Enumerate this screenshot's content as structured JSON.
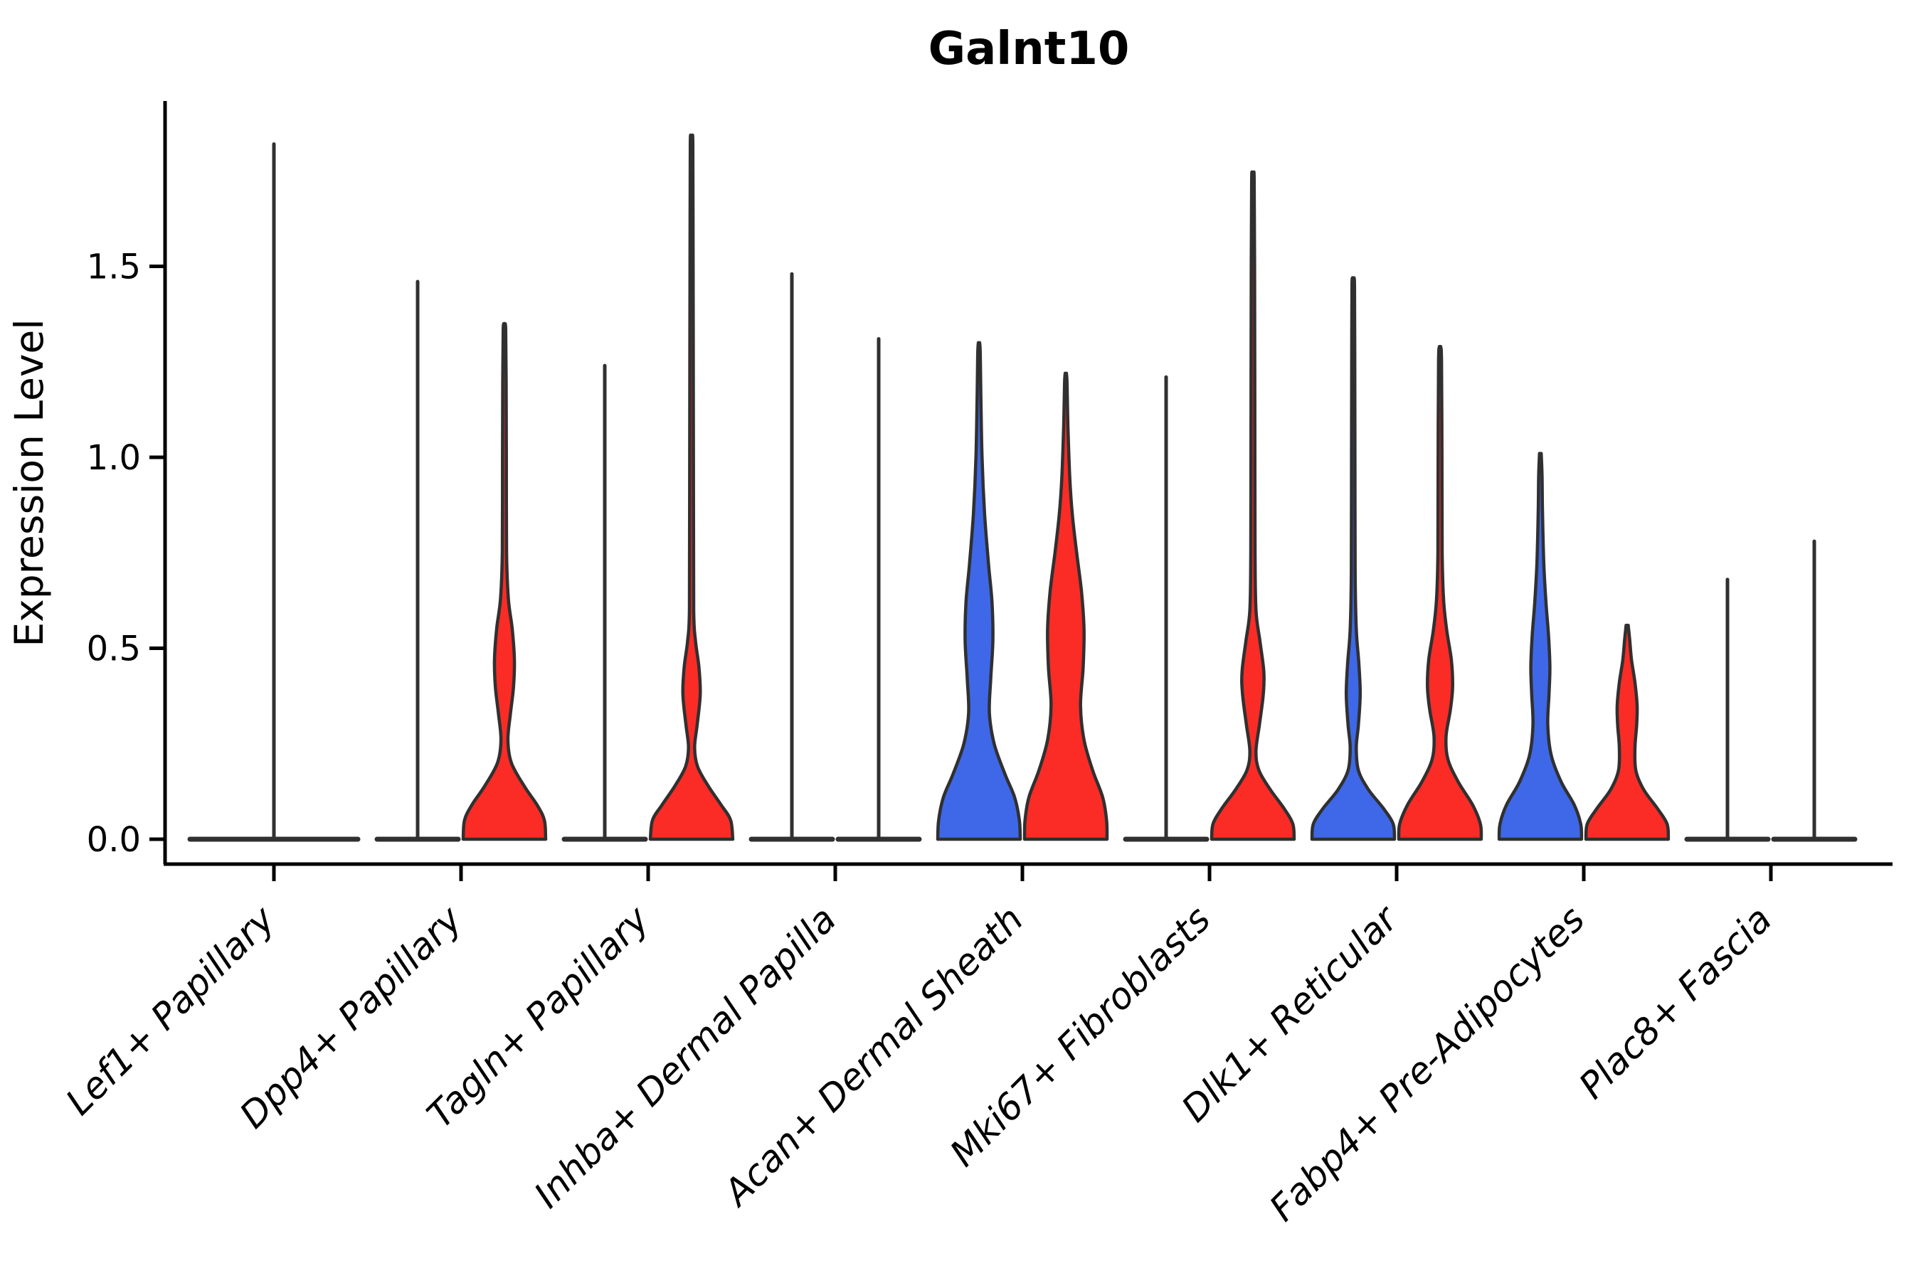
{
  "chart_data": {
    "type": "violin",
    "title": "Galnt10",
    "ylabel": "Expression Level",
    "xlabel": "",
    "ytick_labels": [
      "0.0",
      "0.5",
      "1.0",
      "1.5"
    ],
    "ytick_values": [
      0.0,
      0.5,
      1.0,
      1.5
    ],
    "ylim": [
      0.0,
      1.93
    ],
    "grid": false,
    "legend": "none",
    "split_violin_sides": [
      "left-blue",
      "right-red"
    ],
    "colors": {
      "blue_fill": "#3E68E7",
      "red_fill": "#FB2B26",
      "violin_outline": "#303030",
      "axis": "#000000",
      "background": "#ffffff"
    },
    "categories": [
      "Lef1+ Papillary",
      "Dpp4+ Papillary",
      "Tagln+ Papillary",
      "Inhba+ Dermal Papilla",
      "Acan+ Dermal Sheath",
      "Mki67+ Fibroblasts",
      "Dlk1+ Reticular",
      "Fabp4+ Pre-Adipocytes",
      "Plac8+ Fascia"
    ],
    "groups": [
      {
        "category": "Lef1+ Papillary",
        "violins": [
          {
            "split": "single",
            "color": "none",
            "shape": "collapsed",
            "max": 1.82
          }
        ]
      },
      {
        "category": "Dpp4+ Papillary",
        "violins": [
          {
            "split": "left",
            "color": "blue",
            "shape": "collapsed",
            "max": 1.46
          },
          {
            "split": "right",
            "color": "red",
            "shape": "profile",
            "max": 1.35,
            "profile": [
              [
                0,
                0.95
              ],
              [
                0.05,
                0.92
              ],
              [
                0.09,
                0.75
              ],
              [
                0.14,
                0.45
              ],
              [
                0.2,
                0.16
              ],
              [
                0.26,
                0.08
              ],
              [
                0.33,
                0.14
              ],
              [
                0.4,
                0.21
              ],
              [
                0.47,
                0.23
              ],
              [
                0.55,
                0.18
              ],
              [
                0.63,
                0.09
              ],
              [
                0.75,
                0.05
              ],
              [
                1.0,
                0.045
              ],
              [
                1.2,
                0.04
              ],
              [
                1.33,
                0.03
              ],
              [
                1.35,
                0.015
              ]
            ]
          }
        ]
      },
      {
        "category": "Tagln+ Papillary",
        "violins": [
          {
            "split": "left",
            "color": "blue",
            "shape": "collapsed",
            "max": 1.24
          },
          {
            "split": "right",
            "color": "red",
            "shape": "profile",
            "max": 1.84,
            "profile": [
              [
                0,
                0.95
              ],
              [
                0.05,
                0.9
              ],
              [
                0.09,
                0.68
              ],
              [
                0.14,
                0.38
              ],
              [
                0.19,
                0.14
              ],
              [
                0.24,
                0.07
              ],
              [
                0.3,
                0.13
              ],
              [
                0.38,
                0.2
              ],
              [
                0.45,
                0.17
              ],
              [
                0.52,
                0.09
              ],
              [
                0.6,
                0.05
              ],
              [
                0.9,
                0.045
              ],
              [
                1.3,
                0.04
              ],
              [
                1.6,
                0.035
              ],
              [
                1.82,
                0.03
              ],
              [
                1.84,
                0.015
              ]
            ]
          }
        ]
      },
      {
        "category": "Inhba+ Dermal Papilla",
        "violins": [
          {
            "split": "left",
            "color": "blue",
            "shape": "collapsed",
            "max": 1.48
          },
          {
            "split": "right",
            "color": "red",
            "shape": "collapsed",
            "max": 1.31
          }
        ]
      },
      {
        "category": "Acan+ Dermal Sheath",
        "violins": [
          {
            "split": "left",
            "color": "blue",
            "shape": "profile",
            "max": 1.3,
            "profile": [
              [
                0,
                0.95
              ],
              [
                0.05,
                0.93
              ],
              [
                0.11,
                0.82
              ],
              [
                0.17,
                0.6
              ],
              [
                0.25,
                0.35
              ],
              [
                0.33,
                0.24
              ],
              [
                0.42,
                0.27
              ],
              [
                0.52,
                0.32
              ],
              [
                0.62,
                0.3
              ],
              [
                0.72,
                0.22
              ],
              [
                0.85,
                0.13
              ],
              [
                1.0,
                0.07
              ],
              [
                1.15,
                0.045
              ],
              [
                1.27,
                0.03
              ],
              [
                1.3,
                0.015
              ]
            ]
          },
          {
            "split": "right",
            "color": "red",
            "shape": "profile",
            "max": 1.22,
            "profile": [
              [
                0,
                0.95
              ],
              [
                0.05,
                0.94
              ],
              [
                0.11,
                0.85
              ],
              [
                0.18,
                0.62
              ],
              [
                0.26,
                0.42
              ],
              [
                0.35,
                0.34
              ],
              [
                0.45,
                0.4
              ],
              [
                0.55,
                0.42
              ],
              [
                0.65,
                0.36
              ],
              [
                0.75,
                0.25
              ],
              [
                0.85,
                0.15
              ],
              [
                0.95,
                0.09
              ],
              [
                1.08,
                0.05
              ],
              [
                1.19,
                0.03
              ],
              [
                1.22,
                0.015
              ]
            ]
          }
        ]
      },
      {
        "category": "Mki67+ Fibroblasts",
        "violins": [
          {
            "split": "left",
            "color": "blue",
            "shape": "collapsed",
            "max": 1.21
          },
          {
            "split": "right",
            "color": "red",
            "shape": "profile",
            "max": 1.74,
            "profile": [
              [
                0,
                0.95
              ],
              [
                0.04,
                0.92
              ],
              [
                0.08,
                0.72
              ],
              [
                0.13,
                0.4
              ],
              [
                0.18,
                0.14
              ],
              [
                0.23,
                0.07
              ],
              [
                0.3,
                0.15
              ],
              [
                0.38,
                0.24
              ],
              [
                0.44,
                0.25
              ],
              [
                0.52,
                0.16
              ],
              [
                0.6,
                0.07
              ],
              [
                0.75,
                0.05
              ],
              [
                1.1,
                0.045
              ],
              [
                1.45,
                0.04
              ],
              [
                1.72,
                0.03
              ],
              [
                1.74,
                0.015
              ]
            ]
          }
        ]
      },
      {
        "category": "Dlk1+ Reticular",
        "violins": [
          {
            "split": "left",
            "color": "blue",
            "shape": "profile",
            "max": 1.47,
            "profile": [
              [
                0,
                0.95
              ],
              [
                0.04,
                0.92
              ],
              [
                0.08,
                0.7
              ],
              [
                0.13,
                0.35
              ],
              [
                0.18,
                0.12
              ],
              [
                0.24,
                0.07
              ],
              [
                0.3,
                0.12
              ],
              [
                0.38,
                0.16
              ],
              [
                0.46,
                0.13
              ],
              [
                0.55,
                0.07
              ],
              [
                0.7,
                0.045
              ],
              [
                1.0,
                0.04
              ],
              [
                1.3,
                0.035
              ],
              [
                1.45,
                0.03
              ],
              [
                1.47,
                0.015
              ]
            ]
          },
          {
            "split": "right",
            "color": "red",
            "shape": "profile",
            "max": 1.29,
            "profile": [
              [
                0,
                0.95
              ],
              [
                0.04,
                0.93
              ],
              [
                0.09,
                0.75
              ],
              [
                0.15,
                0.42
              ],
              [
                0.21,
                0.18
              ],
              [
                0.27,
                0.14
              ],
              [
                0.34,
                0.24
              ],
              [
                0.4,
                0.29
              ],
              [
                0.47,
                0.26
              ],
              [
                0.55,
                0.15
              ],
              [
                0.63,
                0.08
              ],
              [
                0.75,
                0.05
              ],
              [
                1.0,
                0.045
              ],
              [
                1.25,
                0.035
              ],
              [
                1.29,
                0.015
              ]
            ]
          }
        ]
      },
      {
        "category": "Fabp4+ Pre-Adipocytes",
        "violins": [
          {
            "split": "left",
            "color": "blue",
            "shape": "profile",
            "max": 1.01,
            "profile": [
              [
                0,
                0.95
              ],
              [
                0.04,
                0.93
              ],
              [
                0.09,
                0.78
              ],
              [
                0.15,
                0.48
              ],
              [
                0.22,
                0.25
              ],
              [
                0.3,
                0.17
              ],
              [
                0.38,
                0.2
              ],
              [
                0.45,
                0.22
              ],
              [
                0.53,
                0.19
              ],
              [
                0.62,
                0.13
              ],
              [
                0.72,
                0.08
              ],
              [
                0.85,
                0.05
              ],
              [
                0.95,
                0.04
              ],
              [
                1.01,
                0.02
              ]
            ]
          },
          {
            "split": "right",
            "color": "red",
            "shape": "profile",
            "max": 0.56,
            "profile": [
              [
                0,
                0.95
              ],
              [
                0.04,
                0.92
              ],
              [
                0.08,
                0.7
              ],
              [
                0.13,
                0.38
              ],
              [
                0.18,
                0.2
              ],
              [
                0.24,
                0.18
              ],
              [
                0.3,
                0.22
              ],
              [
                0.35,
                0.23
              ],
              [
                0.41,
                0.18
              ],
              [
                0.47,
                0.1
              ],
              [
                0.52,
                0.06
              ],
              [
                0.56,
                0.025
              ]
            ]
          }
        ]
      },
      {
        "category": "Plac8+ Fascia",
        "violins": [
          {
            "split": "left",
            "color": "blue",
            "shape": "collapsed",
            "max": 0.68
          },
          {
            "split": "right",
            "color": "red",
            "shape": "collapsed",
            "max": 0.78
          }
        ]
      }
    ]
  }
}
